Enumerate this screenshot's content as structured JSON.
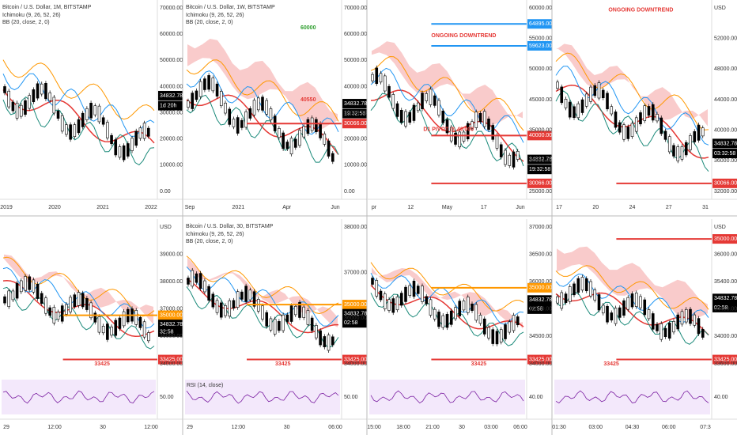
{
  "panels": [
    {
      "title": "Bitcoin / U.S. Dollar, 1M, BITSTAMP",
      "indicators": [
        "Ichimoku (9, 26, 52, 26)",
        "BB (20, close, 2, 0)"
      ],
      "axis": [
        "70000.00",
        "60000.00",
        "50000.00",
        "40000.00",
        "30000.00",
        "20000.00",
        "10000.00",
        "0.00"
      ],
      "tags": [
        {
          "text": "34832.78",
          "color": "#000000"
        },
        {
          "text": "1d 20h",
          "color": "#000000"
        }
      ],
      "annotations": [],
      "x_labels": [
        "2019",
        "2020",
        "2021",
        "2022"
      ]
    },
    {
      "title": "Bitcoin / U.S. Dollar, 1W, BITSTAMP",
      "indicators": [
        "Ichimoku (9, 26, 52, 26)",
        "BB (20, close, 2, 0)"
      ],
      "axis": [
        "70000.00",
        "60000.00",
        "50000.00",
        "40000.00",
        "30000.00",
        "20000.00",
        "10000.00",
        "0.00"
      ],
      "tags": [
        {
          "text": "34832.78",
          "color": "#ffffff"
        },
        {
          "text": "19:32:58",
          "color": "#ffffff"
        },
        {
          "text": "30066.00",
          "color": "#e53935"
        }
      ],
      "annotations": [
        "60000",
        "40550"
      ],
      "x_labels": [
        "Sep",
        "2021",
        "Apr",
        "Jun"
      ]
    },
    {
      "title": "",
      "indicators": [],
      "axis": [
        "60000.00",
        "55000.00",
        "50000.00",
        "45000.00",
        "35000.00",
        "30000.00",
        "25000.00"
      ],
      "tags": [
        {
          "text": "64895.00",
          "color": "#2196f3"
        },
        {
          "text": "59623.00",
          "color": "#2196f3"
        },
        {
          "text": "40000.00",
          "color": "#e53935"
        },
        {
          "text": "34832.78",
          "color": "#ffffff"
        },
        {
          "text": "19:32:58",
          "color": "#ffffff"
        },
        {
          "text": "30066.00",
          "color": "#e53935"
        }
      ],
      "annotations": [
        "ONGOING DOWNTREND",
        "D1 PIVOT @ 40'000"
      ],
      "x_labels": [
        "pr",
        "12",
        "May",
        "17",
        "Jun"
      ]
    },
    {
      "title": "",
      "indicators": [],
      "axis": [
        "USD",
        "52000.00",
        "48000.00",
        "44000.00",
        "40000.00",
        "36000.00",
        "32000.00"
      ],
      "tags": [
        {
          "text": "34832.78",
          "color": "#ffffff"
        },
        {
          "text": "03:32:58",
          "color": "#ffffff"
        },
        {
          "text": "30066.00",
          "color": "#e53935"
        }
      ],
      "annotations": [
        "ONGOING DOWNTREND"
      ],
      "x_labels": [
        "17",
        "20",
        "24",
        "27",
        "31"
      ]
    },
    {
      "title": "",
      "indicators": [],
      "axis": [
        "USD",
        "39000.00",
        "38000.00",
        "37000.00",
        "36000.00",
        "34000.00"
      ],
      "tags": [
        {
          "text": "35000.00",
          "color": "#ff9800"
        },
        {
          "text": "34832.78",
          "color": "#ffffff"
        },
        {
          "text": "32:58",
          "color": "#ffffff"
        },
        {
          "text": "33425.00",
          "color": "#e53935"
        }
      ],
      "annotations": [
        "33425"
      ],
      "rsi_axis": "50.00",
      "rsi_title": "",
      "x_labels": [
        "29",
        "12:00",
        "30",
        "12:00"
      ]
    },
    {
      "title": "Bitcoin / U.S. Dollar, 30, BITSTAMP",
      "indicators": [
        "Ichimoku (9, 26, 52, 26)",
        "BB (20, close, 2, 0)"
      ],
      "axis": [
        "38000.00",
        "37000.00",
        "36000.00",
        "34000.00"
      ],
      "tags": [
        {
          "text": "35000.00",
          "color": "#ff9800"
        },
        {
          "text": "34832.78",
          "color": "#ffffff"
        },
        {
          "text": "02:58",
          "color": "#ffffff"
        },
        {
          "text": "33425.00",
          "color": "#e53935"
        }
      ],
      "annotations": [
        "33425"
      ],
      "rsi_axis": "50.00",
      "rsi_title": "RSI (14, close)",
      "x_labels": [
        "29",
        "12:00",
        "30",
        "06:00"
      ]
    },
    {
      "title": "",
      "indicators": [],
      "axis": [
        "37000.00",
        "36500.00",
        "36000.00",
        "35500.00",
        "34500.00",
        "34000.00"
      ],
      "tags": [
        {
          "text": "35000.00",
          "color": "#ff9800"
        },
        {
          "text": "34832.78",
          "color": "#ffffff"
        },
        {
          "text": "02:58",
          "color": "#ffffff"
        },
        {
          "text": "33425.00",
          "color": "#e53935"
        }
      ],
      "annotations": [
        "33425"
      ],
      "rsi_axis": "40.00",
      "rsi_title": "",
      "x_labels": [
        "15:00",
        "18:00",
        "21:00",
        "30",
        "03:00",
        "06:00"
      ]
    },
    {
      "title": "",
      "indicators": [],
      "axis": [
        "USD",
        "36000.00",
        "35400.00",
        "34400.00",
        "34000.00",
        "33600.00"
      ],
      "tags": [
        {
          "text": "35000.00",
          "color": "#e53935"
        },
        {
          "text": "34832.78",
          "color": "#ffffff"
        },
        {
          "text": "02:58",
          "color": "#ffffff"
        },
        {
          "text": "33425.00",
          "color": "#e53935"
        }
      ],
      "annotations": [
        "33425"
      ],
      "rsi_axis": "40.00",
      "rsi_title": "",
      "x_labels": [
        "01:30",
        "03:00",
        "04:30",
        "06:00",
        "07:3"
      ]
    }
  ]
}
